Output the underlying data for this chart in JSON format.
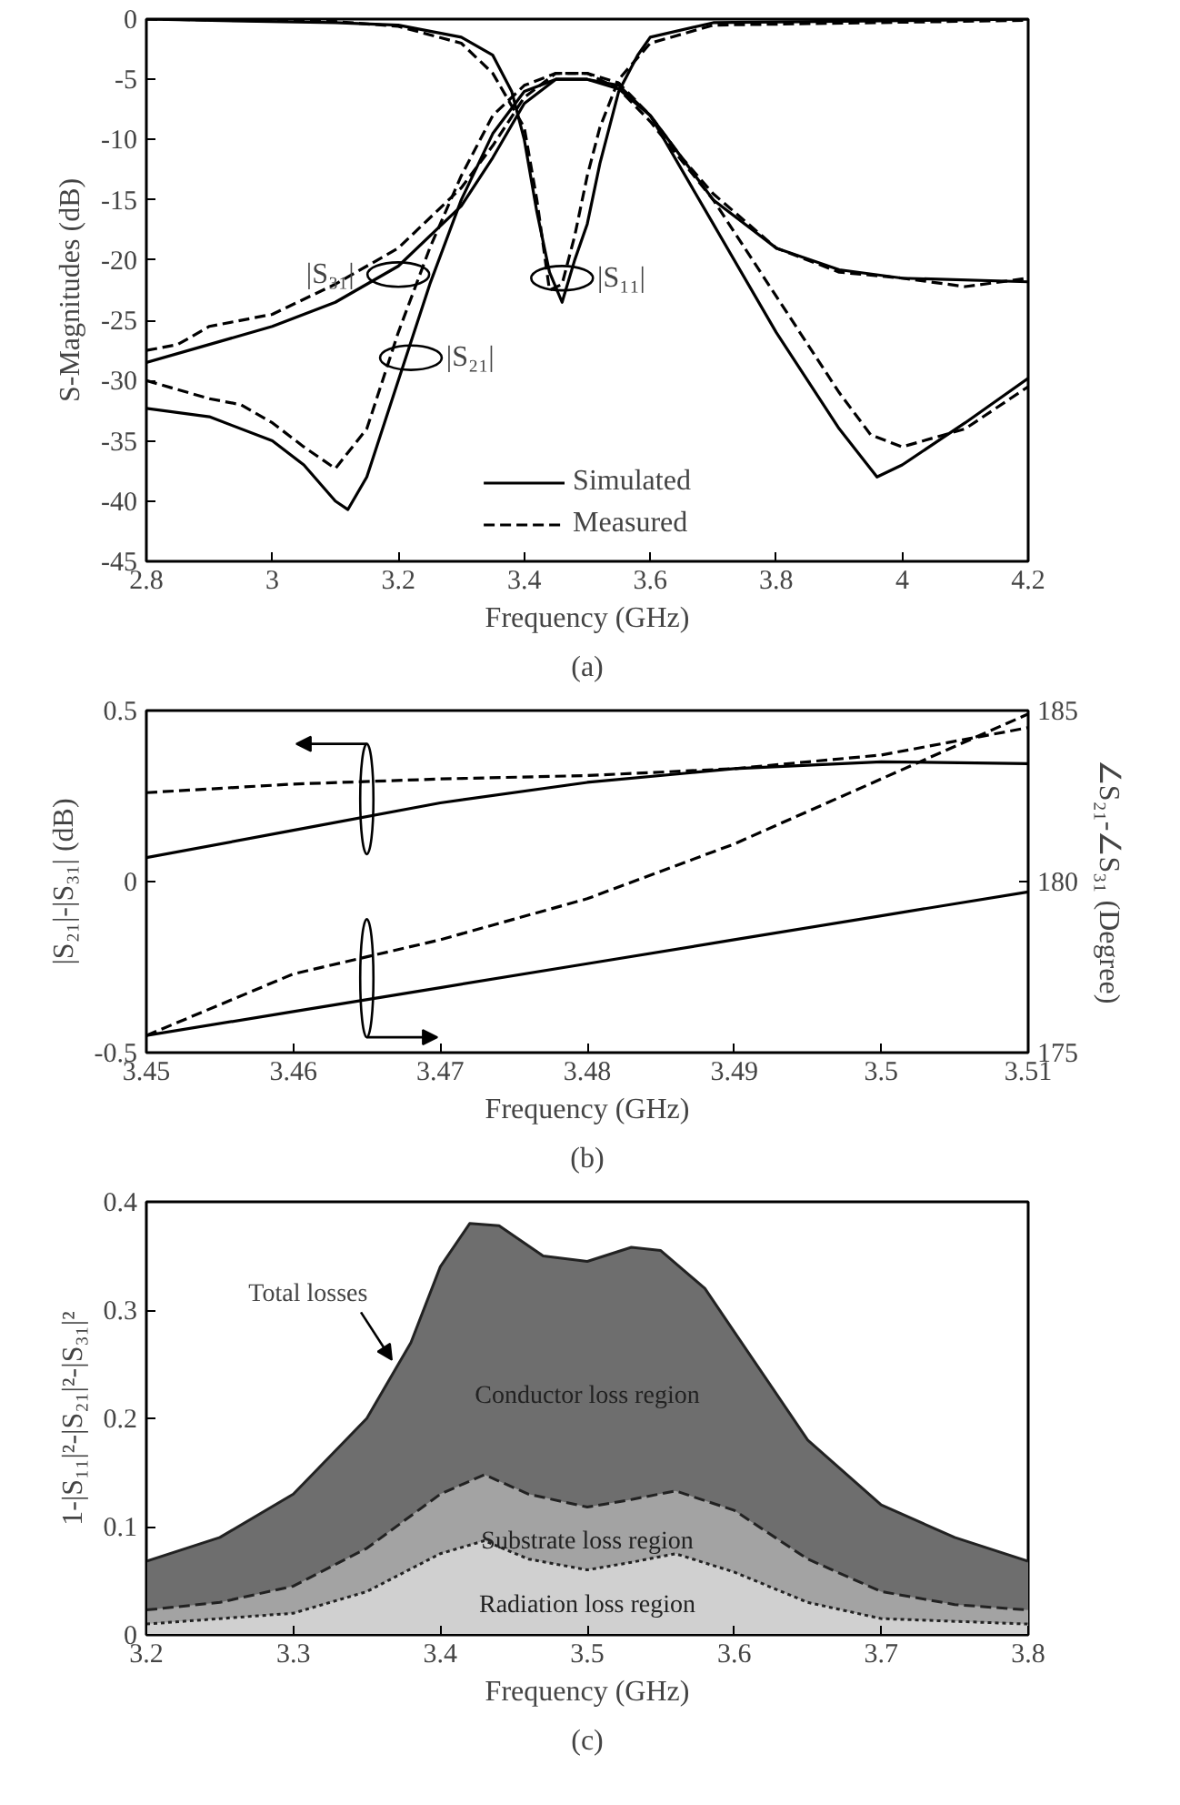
{
  "chart_data": [
    {
      "type": "line",
      "xlabel": "Frequency (GHz)",
      "ylabel": "S-Magnitudes (dB)",
      "xlim": [
        2.8,
        4.2
      ],
      "ylim": [
        -45,
        0
      ],
      "xticks": [
        2.8,
        3,
        3.2,
        3.4,
        3.6,
        3.8,
        4,
        4.2
      ],
      "yticks": [
        -45,
        -40,
        -35,
        -30,
        -25,
        -20,
        -15,
        -10,
        -5,
        0
      ],
      "legend": "bottom",
      "series": [
        {
          "name": "Simulated",
          "color": "#000000",
          "line_style": "solid",
          "x": [
            2.8,
            3.1,
            3.2,
            3.3,
            3.35,
            3.38,
            3.4,
            3.42,
            3.44,
            3.46,
            3.48,
            3.5,
            3.52,
            3.55,
            3.58,
            3.6,
            3.7,
            4.2
          ],
          "values": [
            0,
            -0.3,
            -0.5,
            -1.5,
            -3,
            -6,
            -10,
            -16,
            -21,
            -23.5,
            -20,
            -17,
            -12,
            -6,
            -3,
            -1.5,
            -0.3,
            0
          ]
        },
        {
          "name": "Measured",
          "color": "#000000",
          "line_style": "dashed",
          "x": [
            2.8,
            3.1,
            3.2,
            3.3,
            3.35,
            3.4,
            3.42,
            3.44,
            3.46,
            3.48,
            3.5,
            3.52,
            3.55,
            3.6,
            3.7,
            4.2
          ],
          "values": [
            0,
            -0.2,
            -0.6,
            -2,
            -4.5,
            -9,
            -15,
            -22.5,
            -22,
            -18,
            -13,
            -9,
            -5,
            -2,
            -0.5,
            -0.1
          ]
        },
        {
          "color": "#000000",
          "line_style": "solid",
          "x": [
            2.8,
            2.9,
            3.0,
            3.05,
            3.1,
            3.12,
            3.15,
            3.2,
            3.25,
            3.3,
            3.35,
            3.4,
            3.45,
            3.5,
            3.55,
            3.6,
            3.7,
            3.8,
            3.9,
            3.96,
            4.0,
            4.1,
            4.2
          ],
          "values": [
            -32.3,
            -33,
            -35,
            -37,
            -40,
            -40.7,
            -38,
            -30,
            -22,
            -15,
            -9.5,
            -6,
            -5,
            -5,
            -5.8,
            -8,
            -17,
            -26,
            -34,
            -38,
            -37,
            -33.5,
            -29.8
          ]
        },
        {
          "color": "#000000",
          "line_style": "dashed",
          "x": [
            2.8,
            2.9,
            2.95,
            3.0,
            3.05,
            3.1,
            3.15,
            3.2,
            3.25,
            3.3,
            3.35,
            3.4,
            3.45,
            3.5,
            3.55,
            3.6,
            3.7,
            3.8,
            3.9,
            3.95,
            4.0,
            4.1,
            4.2
          ],
          "values": [
            -30,
            -31.5,
            -32,
            -33.5,
            -35.5,
            -37.3,
            -34,
            -26,
            -19,
            -13,
            -8,
            -5.5,
            -4.5,
            -4.5,
            -5.8,
            -8.5,
            -15,
            -23,
            -31,
            -34.5,
            -35.5,
            -34,
            -30.5
          ]
        },
        {
          "color": "#000000",
          "line_style": "solid",
          "x": [
            2.8,
            2.9,
            3.0,
            3.1,
            3.2,
            3.3,
            3.35,
            3.4,
            3.45,
            3.5,
            3.55,
            3.6,
            3.65,
            3.7,
            3.8,
            3.9,
            4.0,
            4.2
          ],
          "values": [
            -28.5,
            -27,
            -25.5,
            -23.5,
            -20.5,
            -15.5,
            -11.5,
            -7,
            -5,
            -5,
            -5.5,
            -8,
            -11.5,
            -15,
            -19,
            -20.8,
            -21.5,
            -21.8
          ]
        },
        {
          "color": "#000000",
          "line_style": "dashed",
          "x": [
            2.8,
            2.85,
            2.9,
            3.0,
            3.1,
            3.2,
            3.3,
            3.35,
            3.4,
            3.45,
            3.5,
            3.55,
            3.6,
            3.65,
            3.7,
            3.8,
            3.9,
            4.0,
            4.1,
            4.2
          ],
          "values": [
            -27.5,
            -27,
            -25.5,
            -24.5,
            -22,
            -19,
            -14,
            -10.5,
            -6.5,
            -4.5,
            -4.5,
            -5.3,
            -8,
            -11.5,
            -14.5,
            -19,
            -21,
            -21.5,
            -22.2,
            -21.5
          ]
        }
      ],
      "annotations": [
        {
          "text": "|S₃₁|",
          "x": 3.2,
          "y": -21.2
        },
        {
          "text": "|S₂₁|",
          "x": 3.22,
          "y": -28.1
        },
        {
          "text": "|S₁₁|",
          "x": 3.46,
          "y": -21.5
        },
        "(a)"
      ]
    },
    {
      "type": "line",
      "xlabel": "Frequency (GHz)",
      "ylabel": "|S₂₁|-|S₃₁| (dB)",
      "y2label": "∠S₂₁-∠S₃₁ (Degree)",
      "xlim": [
        3.45,
        3.51
      ],
      "ylim": [
        -0.5,
        0.5
      ],
      "y2lim": [
        175,
        185
      ],
      "xticks": [
        3.45,
        3.46,
        3.47,
        3.48,
        3.49,
        3.5,
        3.51
      ],
      "yticks": [
        -0.5,
        0,
        0.5
      ],
      "y2ticks": [
        175,
        180,
        185
      ],
      "series": [
        {
          "color": "#000000",
          "line_style": "solid",
          "x": [
            3.45,
            3.46,
            3.47,
            3.48,
            3.49,
            3.5,
            3.51
          ],
          "values": [
            0.07,
            0.15,
            0.23,
            0.29,
            0.33,
            0.35,
            0.345
          ]
        },
        {
          "color": "#000000",
          "line_style": "dashed",
          "x": [
            3.45,
            3.46,
            3.47,
            3.48,
            3.49,
            3.5,
            3.51
          ],
          "values": [
            0.26,
            0.285,
            0.3,
            0.31,
            0.33,
            0.37,
            0.45
          ]
        },
        {
          "color": "#000000",
          "line_style": "solid",
          "axis": "y2",
          "x": [
            3.45,
            3.46,
            3.47,
            3.48,
            3.49,
            3.5,
            3.51
          ],
          "values": [
            175.5,
            176.2,
            176.9,
            177.6,
            178.3,
            179.0,
            179.7
          ]
        },
        {
          "color": "#000000",
          "line_style": "dashed",
          "axis": "y2",
          "x": [
            3.45,
            3.46,
            3.47,
            3.48,
            3.49,
            3.5,
            3.51
          ],
          "values": [
            175.5,
            177.3,
            178.3,
            179.5,
            181.1,
            183.0,
            184.9
          ]
        }
      ],
      "annotations": [
        "(b)"
      ]
    },
    {
      "type": "area",
      "xlabel": "Frequency (GHz)",
      "ylabel": "1-|S₁₁|²-|S₂₁|²-|S₃₁|²",
      "xlim": [
        3.2,
        3.8
      ],
      "ylim": [
        0,
        0.4
      ],
      "xticks": [
        3.2,
        3.3,
        3.4,
        3.5,
        3.6,
        3.7,
        3.8
      ],
      "yticks": [
        0,
        0.1,
        0.2,
        0.3,
        0.4
      ],
      "series": [
        {
          "color": "#6e6e6e",
          "line_style": "solid",
          "x": [
            3.2,
            3.25,
            3.3,
            3.35,
            3.38,
            3.4,
            3.42,
            3.44,
            3.47,
            3.5,
            3.53,
            3.55,
            3.58,
            3.6,
            3.65,
            3.7,
            3.75,
            3.8
          ],
          "values": [
            0.068,
            0.09,
            0.13,
            0.2,
            0.27,
            0.34,
            0.38,
            0.378,
            0.35,
            0.345,
            0.358,
            0.355,
            0.32,
            0.28,
            0.18,
            0.12,
            0.09,
            0.068
          ]
        },
        {
          "color": "#a3a3a3",
          "line_style": "dashed",
          "x": [
            3.2,
            3.25,
            3.3,
            3.35,
            3.4,
            3.43,
            3.46,
            3.5,
            3.53,
            3.56,
            3.6,
            3.65,
            3.7,
            3.75,
            3.8
          ],
          "values": [
            0.023,
            0.03,
            0.045,
            0.08,
            0.13,
            0.148,
            0.13,
            0.118,
            0.125,
            0.133,
            0.115,
            0.07,
            0.04,
            0.028,
            0.023
          ]
        },
        {
          "color": "#d0d0d0",
          "line_style": "dotted",
          "x": [
            3.2,
            3.3,
            3.35,
            3.4,
            3.43,
            3.46,
            3.5,
            3.53,
            3.56,
            3.6,
            3.65,
            3.7,
            3.8
          ],
          "values": [
            0.01,
            0.02,
            0.04,
            0.075,
            0.087,
            0.07,
            0.06,
            0.067,
            0.075,
            0.058,
            0.03,
            0.015,
            0.01
          ]
        }
      ],
      "annotations": [
        {
          "text": "Total losses",
          "x": 3.37,
          "y": 0.25
        },
        "Conductor loss region",
        "Substrate loss region",
        "Radiation loss region",
        "(c)"
      ]
    }
  ]
}
